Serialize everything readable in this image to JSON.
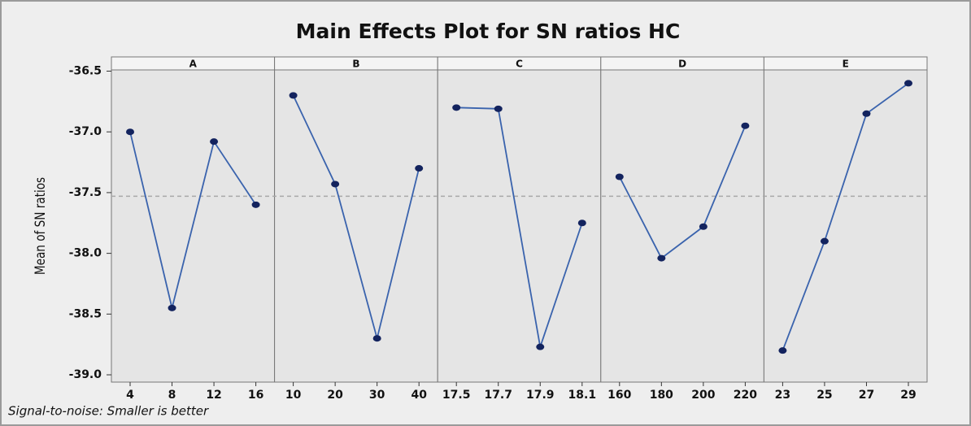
{
  "chart_data": {
    "type": "line",
    "title": "Main Effects Plot for SN ratios HC",
    "ylabel": "Mean of SN ratios",
    "note": "Signal-to-noise: Smaller is better",
    "color": "#3a63ad",
    "marker_color": "#13235e",
    "reference_line": -37.53,
    "ylim": [
      -39.06,
      -36.49
    ],
    "yticks": [
      {
        "value": -39.0,
        "label": "-39.0"
      },
      -38.5,
      {
        "value": -38.0,
        "label": "-38.0"
      },
      -37.5,
      {
        "value": -37.0,
        "label": "-37.0"
      },
      -36.5
    ],
    "panels": [
      {
        "name": "A",
        "categories": [
          "4",
          "8",
          "12",
          "16"
        ],
        "values": [
          -37.0,
          -38.45,
          -37.08,
          -37.6
        ]
      },
      {
        "name": "B",
        "categories": [
          "10",
          "20",
          "30",
          "40"
        ],
        "values": [
          -36.7,
          -37.43,
          -38.7,
          -37.3
        ]
      },
      {
        "name": "C",
        "categories": [
          "17.5",
          "17.7",
          "17.9",
          "18.1"
        ],
        "values": [
          -36.8,
          -36.81,
          -38.77,
          -37.75
        ]
      },
      {
        "name": "D",
        "categories": [
          "160",
          "180",
          "200",
          "220"
        ],
        "values": [
          -37.37,
          -38.04,
          -37.78,
          -36.95
        ]
      },
      {
        "name": "E",
        "categories": [
          "23",
          "25",
          "27",
          "29"
        ],
        "values": [
          -38.8,
          -37.9,
          -36.85,
          -36.6
        ]
      }
    ]
  }
}
